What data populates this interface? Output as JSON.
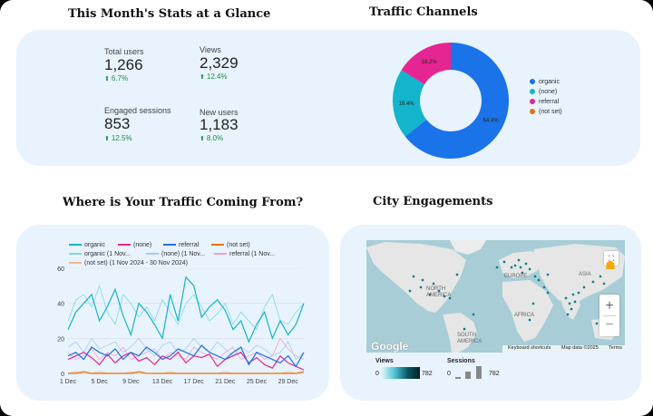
{
  "headings": {
    "stats": "This Month's Stats at a Glance",
    "traffic": "Traffic Channels",
    "where": "Where is Your Traffic Coming From?",
    "city": "City Engagements"
  },
  "stats": [
    {
      "label": "Total users",
      "value": "1,266",
      "delta": "6.7%"
    },
    {
      "label": "Views",
      "value": "2,329",
      "delta": "12.4%"
    },
    {
      "label": "Engaged sessions",
      "value": "853",
      "delta": "12.5%"
    },
    {
      "label": "New users",
      "value": "1,183",
      "delta": "8.0%"
    }
  ],
  "colors": {
    "organic": "#1a73e8",
    "none": "#12b5cb",
    "referral": "#e52592",
    "notset": "#e8710a",
    "page_bg": "#e8f3fe",
    "up": "#1e8e3e"
  },
  "donut": {
    "slices": [
      {
        "name": "organic",
        "value": 64.4,
        "label": "64.4%"
      },
      {
        "name": "(none)",
        "value": 19.4,
        "label": "19.4%"
      },
      {
        "name": "referral",
        "value": 16.2,
        "label": "16.2%"
      },
      {
        "name": "(not set)",
        "value": 0.0,
        "label": ""
      }
    ]
  },
  "line_legend": [
    "organic",
    "(none)",
    "referral",
    "(not set)",
    "organic (1 Nov...",
    "(none) (1 Nov...",
    "referral (1 Nov...",
    "(not set) (1 Nov 2024 - 30 Nov 2024)"
  ],
  "chart_data": {
    "type": "line",
    "x": [
      "1 Dec",
      "2 Dec",
      "3 Dec",
      "4 Dec",
      "5 Dec",
      "6 Dec",
      "7 Dec",
      "8 Dec",
      "9 Dec",
      "10 Dec",
      "11 Dec",
      "12 Dec",
      "13 Dec",
      "14 Dec",
      "15 Dec",
      "16 Dec",
      "17 Dec",
      "18 Dec",
      "19 Dec",
      "20 Dec",
      "21 Dec",
      "22 Dec",
      "23 Dec",
      "24 Dec",
      "25 Dec",
      "26 Dec",
      "27 Dec",
      "28 Dec",
      "29 Dec",
      "30 Dec",
      "31 Dec"
    ],
    "xticks": [
      "1 Dec",
      "5 Dec",
      "9 Dec",
      "13 Dec",
      "17 Dec",
      "21 Dec",
      "25 Dec",
      "29 Dec"
    ],
    "yticks": [
      0,
      20,
      40,
      60
    ],
    "ylim": [
      0,
      60
    ],
    "series": [
      {
        "name": "organic",
        "color": "#12b5cb",
        "width": 1.2,
        "values": [
          25,
          35,
          40,
          45,
          30,
          38,
          48,
          33,
          22,
          40,
          35,
          28,
          20,
          45,
          30,
          55,
          50,
          32,
          38,
          42,
          36,
          25,
          30,
          18,
          28,
          35,
          20,
          30,
          22,
          28,
          40
        ]
      },
      {
        "name": "(none)",
        "color": "#1a73e8",
        "width": 1.2,
        "values": [
          10,
          12,
          8,
          15,
          12,
          10,
          14,
          8,
          12,
          10,
          15,
          12,
          8,
          10,
          14,
          12,
          10,
          16,
          12,
          10,
          8,
          12,
          15,
          5,
          12,
          10,
          8,
          6,
          10,
          4,
          12
        ]
      },
      {
        "name": "referral",
        "color": "#e52592",
        "width": 1.2,
        "values": [
          8,
          10,
          12,
          9,
          5,
          11,
          6,
          10,
          12,
          7,
          9,
          5,
          10,
          8,
          12,
          6,
          10,
          9,
          11,
          4,
          8,
          10,
          12,
          6,
          9,
          5,
          3,
          10,
          6,
          4,
          2
        ]
      },
      {
        "name": "(not set)",
        "color": "#e8710a",
        "width": 1.2,
        "values": [
          0,
          0,
          1,
          0,
          0,
          0,
          0,
          0,
          0,
          1,
          0,
          0,
          0,
          0,
          0,
          0,
          0,
          0,
          0,
          0,
          0,
          0,
          0,
          0,
          0,
          0,
          0,
          0,
          0,
          0,
          1
        ]
      },
      {
        "name": "organic (1 Nov...",
        "color": "#7fd8e6",
        "width": 0.8,
        "values": [
          30,
          42,
          45,
          38,
          50,
          35,
          28,
          45,
          40,
          32,
          38,
          30,
          42,
          35,
          28,
          40,
          45,
          38,
          30,
          34,
          40,
          28,
          35,
          30,
          25,
          38,
          45,
          30,
          28,
          35,
          40
        ]
      },
      {
        "name": "(none) (1 Nov...",
        "color": "#a9c8f3",
        "width": 0.8,
        "values": [
          15,
          18,
          12,
          20,
          14,
          16,
          18,
          12,
          15,
          20,
          14,
          10,
          16,
          18,
          12,
          14,
          20,
          15,
          12,
          18,
          14,
          10,
          15,
          12,
          16,
          14,
          10,
          12,
          18,
          8,
          12
        ]
      },
      {
        "name": "referral (1 Nov...",
        "color": "#f1a3cd",
        "width": 0.8,
        "values": [
          12,
          8,
          10,
          14,
          8,
          12,
          10,
          15,
          8,
          10,
          12,
          14,
          8,
          12,
          10,
          8,
          15,
          12,
          10,
          8,
          12,
          15,
          8,
          10,
          12,
          8,
          10,
          20,
          14,
          10,
          8
        ]
      },
      {
        "name": "(not set) (1 Nov 2024 - 30 Nov 2024)",
        "color": "#f5b98a",
        "width": 0.8,
        "values": [
          0,
          1,
          0,
          0,
          1,
          0,
          0,
          0,
          1,
          0,
          0,
          0,
          0,
          1,
          0,
          0,
          0,
          0,
          0,
          0,
          1,
          0,
          0,
          0,
          0,
          0,
          0,
          0,
          1,
          0,
          0
        ]
      }
    ]
  },
  "map": {
    "labels": {
      "north_america": "NORTH\nAMERICA",
      "south_america": "SOUTH\nAMERICA",
      "europe": "EUROPE",
      "africa": "AFRICA",
      "asia": "ASIA"
    },
    "google": "Google",
    "footer": {
      "shortcuts": "Keyboard shortcuts",
      "mapdata": "Map data ©2025",
      "terms": "Terms"
    },
    "zoom_in": "+",
    "zoom_out": "−"
  },
  "map_legend": {
    "views_title": "Views",
    "views_min": "0",
    "views_max": "782",
    "sessions_title": "Sessions",
    "sessions_min": "0",
    "sessions_max": "782"
  }
}
